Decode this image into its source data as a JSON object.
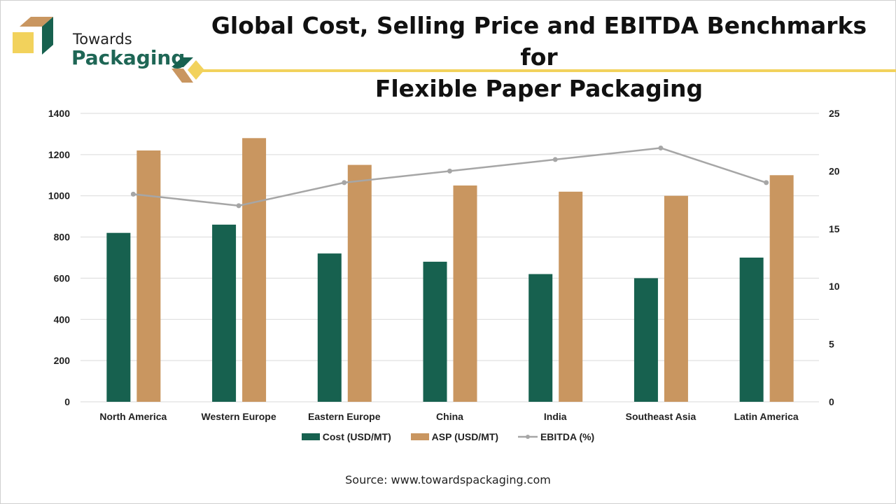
{
  "brand": {
    "line1": "Towards",
    "line2": "Packaging"
  },
  "header": {
    "title_line1": "Global Cost, Selling Price and EBITDA Benchmarks for",
    "title_line2": "Flexible Paper Packaging"
  },
  "colors": {
    "cost": "#17614f",
    "asp": "#c99660",
    "ebitda": "#a6a6a6",
    "accent_yellow": "#f2d25c"
  },
  "chart_data": {
    "type": "bar",
    "title": "Global Cost, Selling Price and EBITDA Benchmarks for Flexible Paper Packaging",
    "categories": [
      "North America",
      "Western Europe",
      "Eastern Europe",
      "China",
      "India",
      "Southeast Asia",
      "Latin America"
    ],
    "series": [
      {
        "name": "Cost (USD/MT)",
        "type": "bar",
        "axis": "left",
        "values": [
          820,
          860,
          720,
          680,
          620,
          600,
          700
        ]
      },
      {
        "name": "ASP (USD/MT)",
        "type": "bar",
        "axis": "left",
        "values": [
          1220,
          1280,
          1150,
          1050,
          1020,
          1000,
          1100
        ]
      },
      {
        "name": "EBITDA (%)",
        "type": "line",
        "axis": "right",
        "values": [
          18,
          17,
          19,
          20,
          21,
          22,
          19
        ]
      }
    ],
    "y_left": {
      "min": 0,
      "max": 1400,
      "ticks": [
        0,
        200,
        400,
        600,
        800,
        1000,
        1200,
        1400
      ]
    },
    "y_right": {
      "min": 0,
      "max": 25,
      "ticks": [
        0,
        5,
        10,
        15,
        20,
        25
      ]
    },
    "grid": true,
    "legend": "bottom",
    "xlabel": "",
    "ylabel": ""
  },
  "legend": {
    "cost": "Cost (USD/MT)",
    "asp": "ASP (USD/MT)",
    "ebitda": "EBITDA (%)"
  },
  "source": "Source: www.towardspackaging.com"
}
